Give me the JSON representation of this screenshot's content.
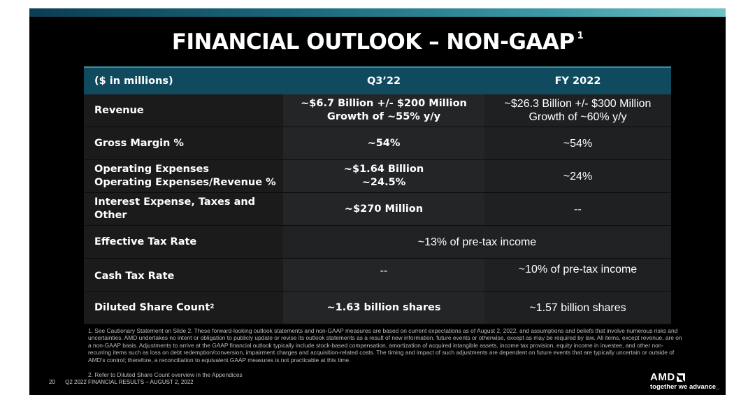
{
  "title": "FINANCIAL OUTLOOK – NON-GAAP",
  "title_footnote": "1",
  "table": {
    "headers": [
      "($ in millions)",
      "Q3’22",
      "FY 2022"
    ],
    "revenue": {
      "label": "Revenue",
      "q3_line1": "~$6.7 Billion +/- $200 Million",
      "q3_line2": "Growth of ~55% y/y",
      "fy_line1": "~$26.3 Billion +/- $300 Million",
      "fy_line2": "Growth of ~60% y/y"
    },
    "gross_margin": {
      "label": "Gross Margin %",
      "q3": "~54%",
      "fy": "~54%"
    },
    "opex": {
      "label_line1": "Operating Expenses",
      "label_line2": "Operating Expenses/Revenue %",
      "q3_line1": "~$1.64 Billion",
      "q3_line2": "~24.5%",
      "fy": "~24%"
    },
    "interest": {
      "label": "Interest Expense, Taxes and Other",
      "q3": "~$270 Million",
      "fy": "--"
    },
    "effective_tax": {
      "label": "Effective Tax Rate",
      "value": "~13% of pre-tax income"
    },
    "cash_tax": {
      "label": "Cash Tax Rate",
      "q3": "--",
      "fy": "~10% of pre-tax income"
    },
    "diluted": {
      "label": "Diluted Share Count",
      "label_sup": "2",
      "q3": "~1.63 billion shares",
      "fy": "~1.57 billion shares"
    }
  },
  "footnote1": "1.  See Cautionary Statement on Slide 2. These forward-looking outlook statements and non-GAAP measures are based on current expectations as of August 2, 2022, and assumptions and beliefs that involve numerous risks and uncertainties. AMD undertakes no intent or obligation to publicly update or revise its outlook statements as a result of new information, future events or otherwise, except as may be required by law. All items, except revenue, are on a non-GAAP basis. Adjustments to arrive at the GAAP financial outlook typically include stock-based compensation, amortization of acquired intangible assets, income tax provision, equity income in investee, and other non-recurring items such as loss on debt redemption/conversion, impairment charges and acquisition-related costs. The timing and impact of such adjustments are dependent on future events that are typically uncertain or outside of AMD’s control; therefore, a reconciliation to equivalent GAAP measures is not practicable at this time.",
  "footnote2": "2.  Refer to Diluted Share Count overview in the Appendices",
  "footer": {
    "page": "20",
    "text": "Q2 2022 FINANCIAL RESULTS – AUGUST 2, 2022"
  },
  "logo": {
    "brand": "AMD",
    "tagline": "together we advance_"
  }
}
